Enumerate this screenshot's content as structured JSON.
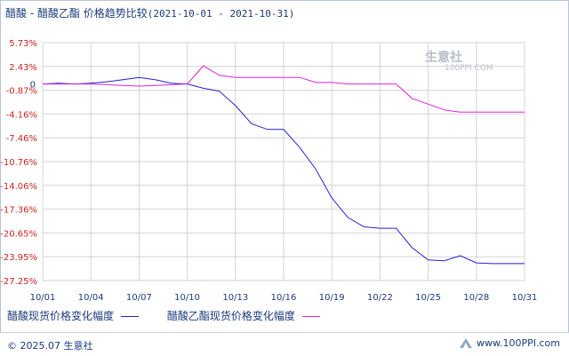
{
  "title": {
    "main": "醋酸 - 醋酸乙酯 价格趋势比较",
    "range": "(2021-10-01 - 2021-10-31)"
  },
  "watermark": {
    "brand": "生意社",
    "url": "100PPI.COM"
  },
  "footer": {
    "copyright": "© 2025.07 生意社",
    "site": "www.100PPI.com"
  },
  "chart_data": {
    "type": "line",
    "x": [
      "10/01",
      "10/02",
      "10/03",
      "10/04",
      "10/05",
      "10/06",
      "10/07",
      "10/08",
      "10/09",
      "10/10",
      "10/11",
      "10/12",
      "10/13",
      "10/14",
      "10/15",
      "10/16",
      "10/17",
      "10/18",
      "10/19",
      "10/20",
      "10/21",
      "10/22",
      "10/23",
      "10/24",
      "10/25",
      "10/26",
      "10/27",
      "10/28",
      "10/29",
      "10/30",
      "10/31"
    ],
    "x_tick_labels": [
      "10/01",
      "10/04",
      "10/07",
      "10/10",
      "10/13",
      "10/16",
      "10/19",
      "10/22",
      "10/25",
      "10/28",
      "10/31"
    ],
    "y_tick_labels": [
      "5.73%",
      "2.43%",
      "-0.87%",
      "-4.16%",
      "-7.46%",
      "-10.76%",
      "-14.06%",
      "-17.36%",
      "-20.65%",
      "-23.95%",
      "-27.25%"
    ],
    "ylim": [
      -27.25,
      5.73
    ],
    "zero_label": "0",
    "grid": true,
    "legend_position": "bottom",
    "series": [
      {
        "name": "醋酸现货价格变化幅度",
        "color": "#2222cc",
        "values": [
          0,
          0.1,
          0,
          0.1,
          0.3,
          0.6,
          0.9,
          0.6,
          0.1,
          0,
          -0.6,
          -1.0,
          -3.0,
          -5.5,
          -6.3,
          -6.3,
          -8.8,
          -11.8,
          -15.8,
          -18.5,
          -19.8,
          -20.0,
          -20.0,
          -22.7,
          -24.4,
          -24.5,
          -23.8,
          -24.8,
          -24.9,
          -24.9,
          -24.9
        ]
      },
      {
        "name": "醋酸乙酯现货价格变化幅度",
        "color": "#dd22dd",
        "values": [
          0,
          0,
          0,
          0,
          -0.1,
          -0.2,
          -0.3,
          -0.2,
          -0.1,
          0,
          2.5,
          1.2,
          0.9,
          0.9,
          0.9,
          0.9,
          0.9,
          0.2,
          0.2,
          0,
          0,
          0,
          0,
          -2.0,
          -2.8,
          -3.6,
          -3.9,
          -3.9,
          -3.9,
          -3.9,
          -3.9
        ]
      }
    ]
  }
}
